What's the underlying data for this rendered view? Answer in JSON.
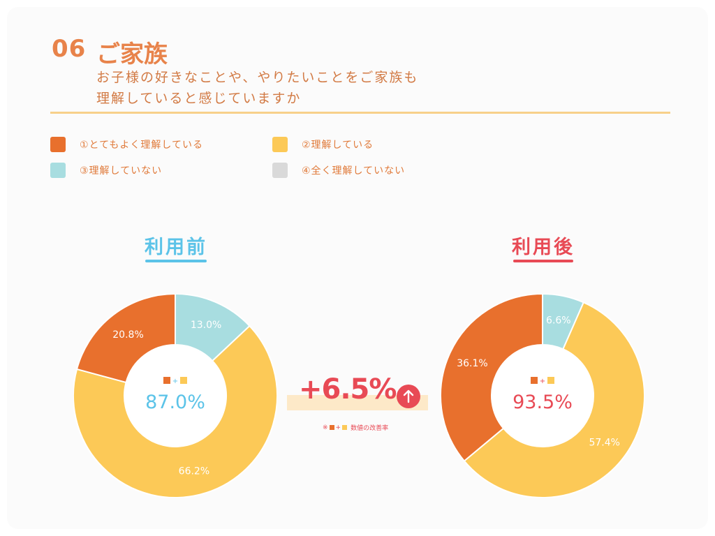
{
  "header": {
    "number": "06",
    "title": "ご家族",
    "subtitle_line1": "お子様の好きなことや、やりたいことをご家族も",
    "subtitle_line2": "理解していると感じていますか"
  },
  "legend": [
    {
      "label": "①とてもよく理解している",
      "color": "#e8702d"
    },
    {
      "label": "②理解している",
      "color": "#fcc957"
    },
    {
      "label": "③理解していない",
      "color": "#a8dde0"
    },
    {
      "label": "④全く理解していない",
      "color": "#d9d9d9"
    }
  ],
  "center_label": {
    "plus": "+"
  },
  "improvement": {
    "value": "+6.5%",
    "note_prefix": "※",
    "note_plus": "+",
    "note_text": "数値の改善率"
  },
  "colors": {
    "before": "#5bc3e8",
    "after": "#e84a55"
  },
  "chart_data": [
    {
      "type": "pie",
      "title": "利用前",
      "total_label": "87.0%",
      "categories": [
        "①とてもよく理解している",
        "②理解している",
        "③理解していない",
        "④全く理解していない"
      ],
      "values": [
        20.8,
        66.2,
        13.0,
        0
      ],
      "value_labels": [
        "20.8%",
        "66.2%",
        "13.0%",
        ""
      ],
      "colors": [
        "#e8702d",
        "#fcc957",
        "#a8dde0",
        "#d9d9d9"
      ]
    },
    {
      "type": "pie",
      "title": "利用後",
      "total_label": "93.5%",
      "categories": [
        "①とてもよく理解している",
        "②理解している",
        "③理解していない",
        "④全く理解していない"
      ],
      "values": [
        36.1,
        57.4,
        6.6,
        0
      ],
      "value_labels": [
        "36.1%",
        "57.4%",
        "6.6%",
        ""
      ],
      "colors": [
        "#e8702d",
        "#fcc957",
        "#a8dde0",
        "#d9d9d9"
      ]
    }
  ]
}
